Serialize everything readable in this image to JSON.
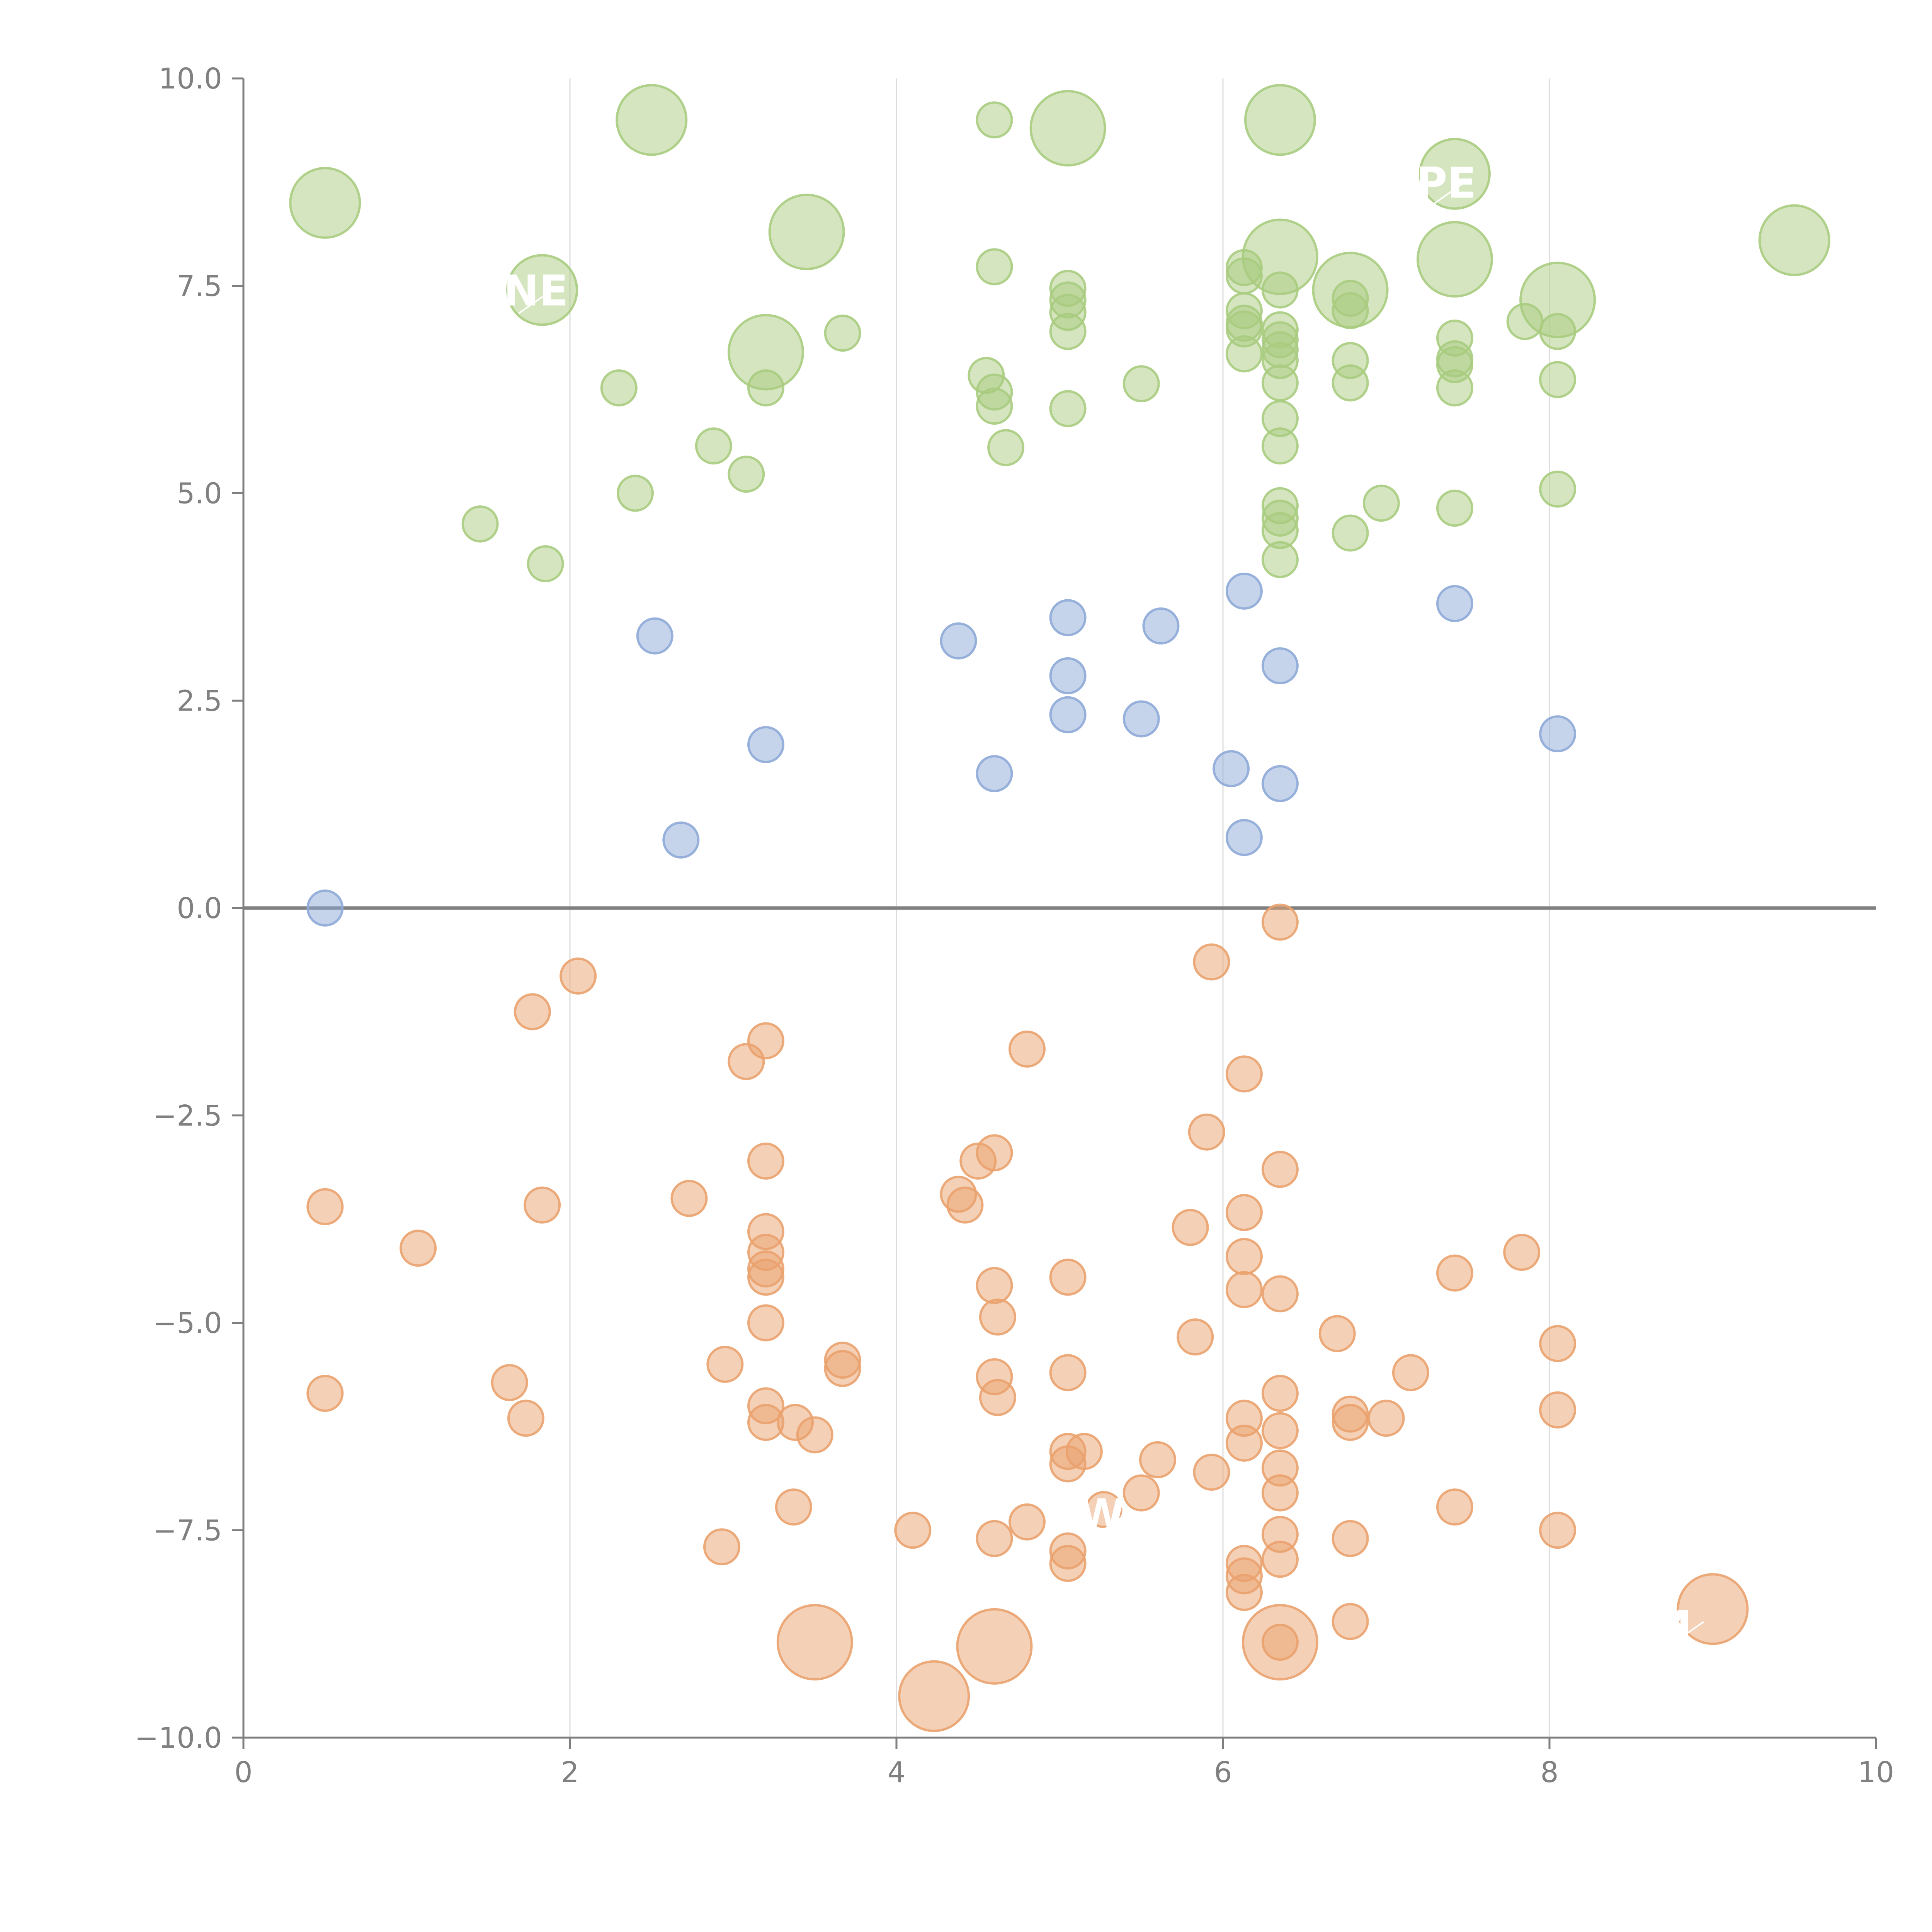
{
  "chart_data": {
    "type": "scatter",
    "title": "",
    "xlabel": "",
    "ylabel": "",
    "xlim": [
      0,
      10
    ],
    "ylim": [
      -10,
      10
    ],
    "x_ticks": [
      "0",
      "2",
      "4",
      "6",
      "8",
      "10"
    ],
    "y_ticks": [
      "10.0",
      "7.5",
      "5.0",
      "2.5",
      "0.0",
      "−2.5",
      "−5.0",
      "−7.5",
      "−10.0"
    ],
    "x_tick_values": [
      0,
      2,
      4,
      6,
      8,
      10
    ],
    "y_tick_values": [
      10,
      7.5,
      5,
      2.5,
      0,
      -2.5,
      -5,
      -7.5,
      -10
    ],
    "grid": "vertical",
    "zero_line": true,
    "colors": {
      "positive_high": "#a9cc80",
      "positive_low": "#8eaad8",
      "negative": "#eaa26e"
    },
    "series": [
      {
        "color_key": "positive_high",
        "points": [
          [
            0.5,
            8.5,
            3
          ],
          [
            2.5,
            9.5,
            3
          ],
          [
            4.6,
            9.5,
            1.5
          ],
          [
            5.05,
            9.4,
            3.2
          ],
          [
            6.35,
            9.5,
            3
          ],
          [
            7.42,
            8.85,
            3
          ],
          [
            1.83,
            7.45,
            3
          ],
          [
            3.45,
            8.15,
            3.2
          ],
          [
            7.42,
            7.82,
            3.2
          ],
          [
            9.5,
            8.05,
            3
          ],
          [
            6.35,
            7.85,
            3.2
          ],
          [
            6.78,
            7.45,
            3.2
          ],
          [
            8.05,
            7.33,
            3.2
          ],
          [
            3.2,
            6.7,
            3.2
          ],
          [
            4.6,
            7.73,
            1.5
          ],
          [
            5.05,
            7.47,
            1.5
          ],
          [
            5.05,
            7.33,
            1.5
          ],
          [
            5.05,
            7.18,
            1.5
          ],
          [
            5.05,
            6.95,
            1.5
          ],
          [
            3.67,
            6.93,
            1.5
          ],
          [
            6.13,
            7.72,
            1.5
          ],
          [
            6.13,
            7.62,
            1.5
          ],
          [
            6.35,
            7.45,
            1.5
          ],
          [
            6.13,
            7.2,
            1.5
          ],
          [
            6.13,
            7.05,
            1.5
          ],
          [
            6.13,
            6.98,
            1.5
          ],
          [
            6.35,
            6.97,
            1.5
          ],
          [
            6.35,
            6.85,
            1.5
          ],
          [
            6.35,
            6.73,
            1.5
          ],
          [
            6.35,
            6.6,
            1.5
          ],
          [
            6.13,
            6.68,
            1.5
          ],
          [
            6.35,
            6.33,
            1.5
          ],
          [
            6.78,
            7.35,
            1.5
          ],
          [
            6.78,
            7.2,
            1.5
          ],
          [
            6.78,
            6.6,
            1.5
          ],
          [
            6.78,
            6.33,
            1.5
          ],
          [
            7.42,
            6.87,
            1.5
          ],
          [
            7.42,
            6.62,
            1.5
          ],
          [
            7.42,
            6.55,
            1.5
          ],
          [
            7.42,
            6.27,
            1.5
          ],
          [
            7.85,
            7.07,
            1.5
          ],
          [
            8.05,
            6.95,
            1.5
          ],
          [
            8.05,
            6.37,
            1.5
          ],
          [
            2.3,
            6.27,
            1.5
          ],
          [
            3.2,
            6.27,
            1.5
          ],
          [
            4.55,
            6.42,
            1.5
          ],
          [
            4.6,
            6.22,
            1.5
          ],
          [
            4.6,
            6.05,
            1.5
          ],
          [
            5.05,
            6.02,
            1.5
          ],
          [
            5.5,
            6.32,
            1.5
          ],
          [
            4.67,
            5.55,
            1.5
          ],
          [
            2.88,
            5.57,
            1.5
          ],
          [
            3.08,
            5.23,
            1.5
          ],
          [
            2.4,
            5.0,
            1.5
          ],
          [
            1.45,
            4.63,
            1.5
          ],
          [
            1.85,
            4.15,
            1.5
          ],
          [
            6.35,
            5.9,
            1.5
          ],
          [
            6.35,
            5.57,
            1.5
          ],
          [
            6.35,
            4.85,
            1.5
          ],
          [
            6.35,
            4.7,
            1.5
          ],
          [
            6.35,
            4.55,
            1.5
          ],
          [
            6.35,
            4.2,
            1.5
          ],
          [
            6.78,
            4.52,
            1.5
          ],
          [
            6.97,
            4.88,
            1.5
          ],
          [
            7.42,
            4.82,
            1.5
          ],
          [
            8.05,
            5.05,
            1.5
          ]
        ]
      },
      {
        "color_key": "positive_low",
        "points": [
          [
            0.5,
            0.0,
            1.5
          ],
          [
            2.52,
            3.28,
            1.5
          ],
          [
            2.68,
            0.82,
            1.5
          ],
          [
            3.2,
            1.97,
            1.5
          ],
          [
            4.38,
            3.22,
            1.5
          ],
          [
            4.6,
            1.62,
            1.5
          ],
          [
            5.05,
            3.5,
            1.5
          ],
          [
            5.05,
            2.8,
            1.5
          ],
          [
            5.05,
            2.33,
            1.5
          ],
          [
            5.5,
            2.28,
            1.5
          ],
          [
            5.62,
            3.4,
            1.5
          ],
          [
            6.05,
            1.68,
            1.5
          ],
          [
            6.13,
            3.82,
            1.5
          ],
          [
            6.13,
            0.85,
            1.5
          ],
          [
            6.35,
            2.92,
            1.5
          ],
          [
            6.35,
            1.5,
            1.5
          ],
          [
            7.42,
            3.67,
            1.5
          ],
          [
            8.05,
            2.1,
            1.5
          ]
        ]
      },
      {
        "color_key": "negative",
        "points": [
          [
            6.35,
            -0.17,
            1.5
          ],
          [
            5.93,
            -0.65,
            1.5
          ],
          [
            2.05,
            -0.82,
            1.5
          ],
          [
            1.77,
            -1.25,
            1.5
          ],
          [
            3.2,
            -1.6,
            1.5
          ],
          [
            3.08,
            -1.85,
            1.5
          ],
          [
            4.8,
            -1.7,
            1.5
          ],
          [
            6.13,
            -2.0,
            1.5
          ],
          [
            5.9,
            -2.7,
            1.5
          ],
          [
            4.6,
            -2.95,
            1.5
          ],
          [
            4.5,
            -3.05,
            1.5
          ],
          [
            3.2,
            -3.05,
            1.5
          ],
          [
            6.35,
            -3.15,
            1.5
          ],
          [
            0.5,
            -3.6,
            1.5
          ],
          [
            1.83,
            -3.58,
            1.5
          ],
          [
            2.73,
            -3.5,
            1.5
          ],
          [
            4.38,
            -3.45,
            1.5
          ],
          [
            4.42,
            -3.58,
            1.5
          ],
          [
            6.13,
            -3.67,
            1.5
          ],
          [
            5.8,
            -3.85,
            1.5
          ],
          [
            1.07,
            -4.1,
            1.5
          ],
          [
            3.2,
            -3.9,
            1.5
          ],
          [
            3.2,
            -4.15,
            1.5
          ],
          [
            3.2,
            -4.35,
            1.5
          ],
          [
            3.2,
            -4.45,
            1.5
          ],
          [
            6.13,
            -4.2,
            1.5
          ],
          [
            7.83,
            -4.15,
            1.5
          ],
          [
            7.42,
            -4.4,
            1.5
          ],
          [
            5.05,
            -4.45,
            1.5
          ],
          [
            4.6,
            -4.55,
            1.5
          ],
          [
            6.13,
            -4.6,
            1.5
          ],
          [
            6.35,
            -4.65,
            1.5
          ],
          [
            4.62,
            -4.93,
            1.5
          ],
          [
            3.2,
            -5.0,
            1.5
          ],
          [
            5.83,
            -5.17,
            1.5
          ],
          [
            6.7,
            -5.13,
            1.5
          ],
          [
            8.05,
            -5.25,
            1.5
          ],
          [
            2.95,
            -5.5,
            1.5
          ],
          [
            3.67,
            -5.45,
            1.5
          ],
          [
            3.67,
            -5.55,
            1.5
          ],
          [
            5.05,
            -5.6,
            1.5
          ],
          [
            7.15,
            -5.6,
            1.5
          ],
          [
            0.5,
            -5.85,
            1.5
          ],
          [
            1.63,
            -5.72,
            1.5
          ],
          [
            4.6,
            -5.65,
            1.5
          ],
          [
            4.62,
            -5.9,
            1.5
          ],
          [
            6.35,
            -5.85,
            1.5
          ],
          [
            3.2,
            -6.0,
            1.5
          ],
          [
            3.2,
            -6.2,
            1.5
          ],
          [
            3.38,
            -6.2,
            1.5
          ],
          [
            3.5,
            -6.35,
            1.5
          ],
          [
            1.73,
            -6.15,
            1.5
          ],
          [
            6.13,
            -6.15,
            1.5
          ],
          [
            6.13,
            -6.45,
            1.5
          ],
          [
            6.35,
            -6.3,
            1.5
          ],
          [
            6.78,
            -6.1,
            1.5
          ],
          [
            6.78,
            -6.2,
            1.5
          ],
          [
            7.0,
            -6.15,
            1.5
          ],
          [
            8.05,
            -6.05,
            1.5
          ],
          [
            5.05,
            -6.55,
            1.5
          ],
          [
            5.15,
            -6.55,
            1.5
          ],
          [
            5.05,
            -6.7,
            1.5
          ],
          [
            5.6,
            -6.65,
            1.5
          ],
          [
            5.93,
            -6.8,
            1.5
          ],
          [
            6.35,
            -6.75,
            1.5
          ],
          [
            6.35,
            -7.05,
            1.5
          ],
          [
            5.5,
            -7.05,
            1.5
          ],
          [
            5.27,
            -7.25,
            1.5
          ],
          [
            3.37,
            -7.22,
            1.5
          ],
          [
            7.42,
            -7.22,
            1.5
          ],
          [
            4.8,
            -7.4,
            1.5
          ],
          [
            4.1,
            -7.5,
            1.5
          ],
          [
            6.35,
            -7.55,
            1.5
          ],
          [
            8.05,
            -7.5,
            1.5
          ],
          [
            4.6,
            -7.6,
            1.5
          ],
          [
            6.78,
            -7.6,
            1.5
          ],
          [
            2.93,
            -7.7,
            1.5
          ],
          [
            5.05,
            -7.75,
            1.5
          ],
          [
            5.05,
            -7.9,
            1.5
          ],
          [
            6.13,
            -7.9,
            1.5
          ],
          [
            6.13,
            -8.05,
            1.5
          ],
          [
            6.35,
            -7.85,
            1.5
          ],
          [
            6.13,
            -8.25,
            1.5
          ],
          [
            6.78,
            -8.6,
            1.5
          ],
          [
            6.35,
            -8.85,
            1.5
          ],
          [
            3.5,
            -8.85,
            3.2
          ],
          [
            4.6,
            -8.9,
            3.2
          ],
          [
            6.35,
            -8.85,
            3.2
          ],
          [
            9.0,
            -8.45,
            3
          ],
          [
            4.23,
            -9.5,
            3
          ]
        ]
      }
    ],
    "labels": [
      {
        "text": "NE",
        "x": 1.83,
        "y": 7.45
      },
      {
        "text": "PE",
        "x": 7.42,
        "y": 8.75
      },
      {
        "text": "W",
        "x": 5.35,
        "y": -7.3
      },
      {
        "text": "M",
        "x": 8.85,
        "y": -8.65
      }
    ]
  }
}
